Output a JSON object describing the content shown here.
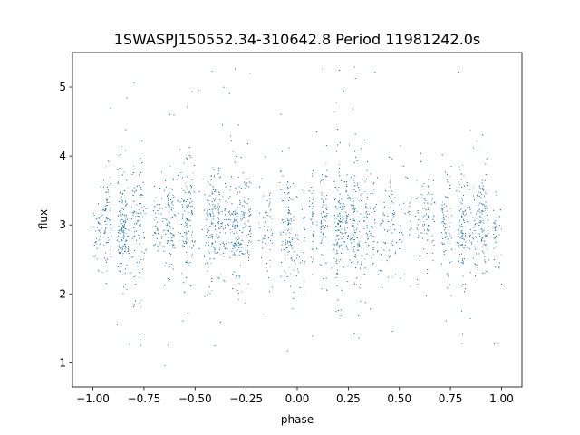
{
  "chart_data": {
    "type": "scatter",
    "title": "1SWASPJ150552.34-310642.8 Period 11981242.0s",
    "xlabel": "phase",
    "ylabel": "flux",
    "xlim": [
      -1.1,
      1.1
    ],
    "ylim": [
      0.65,
      5.5
    ],
    "xticks": [
      -1.0,
      -0.75,
      -0.5,
      -0.25,
      0.0,
      0.25,
      0.5,
      0.75,
      1.0
    ],
    "xtick_labels": [
      "−1.00",
      "−0.75",
      "−0.50",
      "−0.25",
      "0.00",
      "0.25",
      "0.50",
      "0.75",
      "1.00"
    ],
    "yticks": [
      1,
      2,
      3,
      4,
      5
    ],
    "ytick_labels": [
      "1",
      "2",
      "3",
      "4",
      "5"
    ],
    "grid": false,
    "marker_color": "#1f77b4",
    "phase_range": [
      -1.0,
      1.0
    ],
    "flux_median": 3.0,
    "flux_core_range": [
      2.4,
      3.6
    ],
    "flux_envelope": [
      0.9,
      5.3
    ],
    "dip_phases": [
      0.0,
      -1.0,
      1.0
    ],
    "dip_min_flux": 1.6
  }
}
